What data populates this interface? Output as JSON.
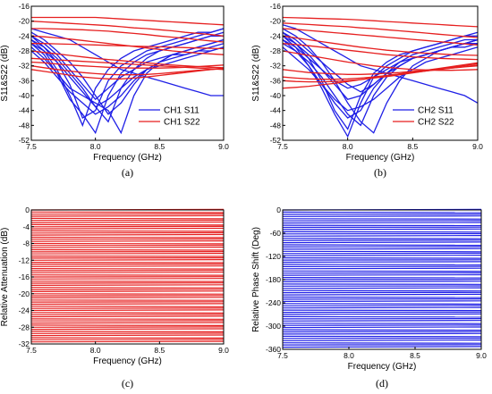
{
  "colors": {
    "blue": "#1f1fe6",
    "red": "#e61f1f",
    "axis": "#000000"
  },
  "chart_data": [
    {
      "type": "line",
      "caption": "(a)",
      "xlabel": "Frequency (GHz)",
      "ylabel": "S11&S22 (dB)",
      "xlim": [
        7.5,
        9.0
      ],
      "ylim": [
        -52,
        -16
      ],
      "xticks": [
        "7.5",
        "8.0",
        "8.5",
        "9.0"
      ],
      "yticks": [
        "-16",
        "-20",
        "-24",
        "-28",
        "-32",
        "-36",
        "-40",
        "-44",
        "-48",
        "-52"
      ],
      "legend_position": "bottom-right",
      "x": [
        7.5,
        7.6,
        7.7,
        7.8,
        7.9,
        8.0,
        8.1,
        8.2,
        8.3,
        8.4,
        8.5,
        8.6,
        8.7,
        8.8,
        8.9,
        9.0
      ],
      "series": [
        {
          "name": "CH1 S11",
          "color": "blue",
          "curves": [
            [
              -24,
              -27,
              -31,
              -37,
              -46,
              -44,
              -36,
              -32,
              -30,
              -28,
              -27,
              -26,
              -25,
              -24,
              -23,
              -22
            ],
            [
              -25,
              -28,
              -33,
              -40,
              -48,
              -38,
              -33,
              -30,
              -28,
              -27,
              -26,
              -25,
              -24,
              -23,
              -23,
              -22
            ],
            [
              -26,
              -29,
              -34,
              -41,
              -45,
              -50,
              -40,
              -34,
              -31,
              -29,
              -28,
              -27,
              -26,
              -25,
              -24,
              -23
            ],
            [
              -25,
              -27,
              -30,
              -34,
              -38,
              -43,
              -47,
              -38,
              -33,
              -30,
              -28,
              -27,
              -26,
              -25,
              -24,
              -24
            ],
            [
              -27,
              -30,
              -34,
              -38,
              -40,
              -42,
              -44,
              -50,
              -40,
              -34,
              -31,
              -29,
              -28,
              -27,
              -26,
              -25
            ],
            [
              -28,
              -31,
              -35,
              -39,
              -42,
              -45,
              -43,
              -40,
              -36,
              -33,
              -31,
              -30,
              -29,
              -28,
              -27,
              -26
            ],
            [
              -23,
              -25,
              -28,
              -31,
              -35,
              -40,
              -45,
              -42,
              -37,
              -33,
              -31,
              -29,
              -28,
              -27,
              -26,
              -25
            ],
            [
              -26,
              -28,
              -31,
              -35,
              -39,
              -43,
              -41,
              -38,
              -35,
              -33,
              -32,
              -31,
              -30,
              -29,
              -28,
              -27
            ],
            [
              -22,
              -23,
              -24,
              -25,
              -27,
              -29,
              -31,
              -33,
              -34,
              -35,
              -36,
              -37,
              -38,
              -39,
              -40,
              -40
            ],
            [
              -24,
              -26,
              -29,
              -33,
              -37,
              -41,
              -38,
              -35,
              -33,
              -31,
              -30,
              -29,
              -29,
              -28,
              -28,
              -27
            ]
          ]
        },
        {
          "name": "CH1 S22",
          "color": "red",
          "curves": [
            [
              -19,
              -19,
              -19,
              -19,
              -19,
              -19,
              -19.2,
              -19.4,
              -19.6,
              -19.8,
              -20,
              -20.2,
              -20.4,
              -20.6,
              -20.8,
              -21
            ],
            [
              -20,
              -20.2,
              -20.4,
              -20.6,
              -20.8,
              -21,
              -21.2,
              -21.5,
              -21.8,
              -22,
              -22.3,
              -22.6,
              -23,
              -23.3,
              -23.6,
              -24
            ],
            [
              -22,
              -22,
              -22.1,
              -22.2,
              -22.3,
              -22.5,
              -22.7,
              -23,
              -23.3,
              -23.6,
              -24,
              -24.3,
              -24.6,
              -25,
              -25.3,
              -25.6
            ],
            [
              -24,
              -24.2,
              -24.5,
              -24.8,
              -25.2,
              -25.6,
              -26,
              -26.4,
              -26.8,
              -27.2,
              -27.6,
              -28,
              -28.3,
              -28.6,
              -28.8,
              -29
            ],
            [
              -26,
              -26,
              -26.1,
              -26.2,
              -26.3,
              -26.4,
              -26.5,
              -26.6,
              -26.7,
              -26.8,
              -26.9,
              -27,
              -27.1,
              -27.2,
              -27.3,
              -27.4
            ],
            [
              -28,
              -28.4,
              -28.8,
              -29.2,
              -29.6,
              -30,
              -30.3,
              -30.6,
              -30.9,
              -31.2,
              -31.5,
              -31.8,
              -32,
              -32.2,
              -32.4,
              -32.5
            ],
            [
              -30,
              -30.2,
              -30.4,
              -30.6,
              -30.8,
              -31,
              -31.2,
              -31.4,
              -31.6,
              -31.8,
              -32,
              -32.2,
              -32.4,
              -32.6,
              -32.8,
              -33
            ],
            [
              -31,
              -31.2,
              -31.5,
              -31.8,
              -32,
              -32.2,
              -32.4,
              -32.5,
              -32.6,
              -32.6,
              -32.6,
              -32.5,
              -32.4,
              -32.2,
              -32,
              -31.8
            ],
            [
              -32,
              -32.5,
              -33,
              -33.4,
              -33.8,
              -34.1,
              -34.3,
              -34.4,
              -34.4,
              -34.3,
              -34.1,
              -33.8,
              -33.5,
              -33.2,
              -33,
              -32.8
            ],
            [
              -33,
              -33.5,
              -34,
              -34.5,
              -35,
              -35.3,
              -35.5,
              -35.5,
              -35.3,
              -35,
              -34.6,
              -34.2,
              -33.8,
              -33.4,
              -33,
              -32.6
            ]
          ]
        }
      ]
    },
    {
      "type": "line",
      "caption": "(b)",
      "xlabel": "Frequency (GHz)",
      "ylabel": "S11&S22 (dB)",
      "xlim": [
        7.5,
        9.0
      ],
      "ylim": [
        -52,
        -16
      ],
      "xticks": [
        "7.5",
        "8.0",
        "8.5",
        "9.0"
      ],
      "yticks": [
        "-16",
        "-20",
        "-24",
        "-28",
        "-32",
        "-36",
        "-40",
        "-44",
        "-48",
        "-52"
      ],
      "legend_position": "bottom-right",
      "x": [
        7.5,
        7.6,
        7.7,
        7.8,
        7.9,
        8.0,
        8.1,
        8.2,
        8.3,
        8.4,
        8.5,
        8.6,
        8.7,
        8.8,
        8.9,
        9.0
      ],
      "series": [
        {
          "name": "CH2 S11",
          "color": "blue",
          "curves": [
            [
              -23,
              -26,
              -30,
              -36,
              -44,
              -49,
              -40,
              -34,
              -31,
              -29,
              -28,
              -27,
              -26,
              -25,
              -24,
              -23
            ],
            [
              -24,
              -27,
              -32,
              -38,
              -45,
              -51,
              -42,
              -35,
              -32,
              -30,
              -28,
              -27,
              -26,
              -25,
              -24,
              -24
            ],
            [
              -25,
              -28,
              -32,
              -37,
              -42,
              -46,
              -44,
              -38,
              -34,
              -31,
              -29,
              -28,
              -27,
              -26,
              -25,
              -25
            ],
            [
              -26,
              -28,
              -31,
              -35,
              -40,
              -45,
              -48,
              -40,
              -35,
              -32,
              -30,
              -29,
              -28,
              -27,
              -26,
              -25
            ],
            [
              -22,
              -24,
              -27,
              -31,
              -36,
              -42,
              -47,
              -50,
              -42,
              -36,
              -32,
              -30,
              -28,
              -27,
              -26,
              -25
            ],
            [
              -27,
              -30,
              -33,
              -37,
              -41,
              -44,
              -43,
              -41,
              -38,
              -35,
              -33,
              -31,
              -30,
              -29,
              -28,
              -27
            ],
            [
              -24,
              -26,
              -29,
              -33,
              -37,
              -41,
              -40,
              -37,
              -34,
              -32,
              -30,
              -29,
              -28,
              -27,
              -26,
              -26
            ],
            [
              -25,
              -27,
              -30,
              -33,
              -36,
              -38,
              -37,
              -35,
              -33,
              -31,
              -30,
              -29,
              -28,
              -27,
              -27,
              -26
            ],
            [
              -21,
              -22,
              -24,
              -26,
              -28,
              -30,
              -32,
              -33,
              -34,
              -35,
              -36,
              -37,
              -38,
              -39,
              -40,
              -42
            ],
            [
              -23,
              -25,
              -28,
              -31,
              -34,
              -37,
              -39,
              -37,
              -34,
              -32,
              -30,
              -29,
              -28,
              -27,
              -26,
              -25
            ]
          ]
        },
        {
          "name": "CH2 S22",
          "color": "red",
          "curves": [
            [
              -19,
              -19.1,
              -19.2,
              -19.3,
              -19.4,
              -19.5,
              -19.7,
              -19.9,
              -20.1,
              -20.3,
              -20.5,
              -20.7,
              -20.9,
              -21.1,
              -21.3,
              -21.5
            ],
            [
              -20.5,
              -20.7,
              -20.9,
              -21.1,
              -21.3,
              -21.5,
              -21.8,
              -22,
              -22.3,
              -22.6,
              -22.9,
              -23.2,
              -23.5,
              -23.8,
              -24.1,
              -24.4
            ],
            [
              -22,
              -22.2,
              -22.5,
              -22.8,
              -23.1,
              -23.4,
              -23.7,
              -24,
              -24.3,
              -24.6,
              -24.9,
              -25.2,
              -25.5,
              -25.8,
              -26.1,
              -26.4
            ],
            [
              -24,
              -24.5,
              -25,
              -25.5,
              -26,
              -26.5,
              -27,
              -27.4,
              -27.8,
              -28.1,
              -28.4,
              -28.6,
              -28.8,
              -29,
              -29.1,
              -29.2
            ],
            [
              -26,
              -26.3,
              -26.6,
              -27,
              -27.4,
              -27.8,
              -28.2,
              -28.6,
              -29,
              -29.3,
              -29.6,
              -29.8,
              -30,
              -30.1,
              -30.2,
              -30.3
            ],
            [
              -28,
              -28.6,
              -29.2,
              -29.8,
              -30.4,
              -31,
              -31.5,
              -32,
              -32.4,
              -32.7,
              -33,
              -33.1,
              -33.2,
              -33.2,
              -33.1,
              -33
            ],
            [
              -33,
              -33.4,
              -33.8,
              -34,
              -34.2,
              -34.3,
              -34.3,
              -34.2,
              -34,
              -33.8,
              -33.5,
              -33.2,
              -32.9,
              -32.6,
              -32.3,
              -32
            ],
            [
              -35,
              -35.3,
              -35.5,
              -35.6,
              -35.6,
              -35.5,
              -35.3,
              -35,
              -34.6,
              -34.2,
              -33.8,
              -33.4,
              -33,
              -32.6,
              -32.2,
              -31.8
            ],
            [
              -36,
              -36.2,
              -36.3,
              -36.3,
              -36.2,
              -36,
              -35.7,
              -35.3,
              -34.9,
              -34.4,
              -33.9,
              -33.4,
              -32.9,
              -32.4,
              -31.9,
              -31.4
            ],
            [
              -38,
              -37.8,
              -37.5,
              -37.1,
              -36.7,
              -36.2,
              -35.7,
              -35.2,
              -34.7,
              -34.2,
              -33.7,
              -33.2,
              -32.7,
              -32.2,
              -31.7,
              -31.2
            ]
          ]
        }
      ]
    },
    {
      "type": "line",
      "caption": "(c)",
      "xlabel": "Frequency (GHz)",
      "ylabel": "Relative Attenuation (dB)",
      "xlim": [
        7.5,
        9.0
      ],
      "ylim": [
        -32,
        0
      ],
      "xticks": [
        "7.5",
        "8.0",
        "8.5",
        "9.0"
      ],
      "yticks": [
        "0",
        "-4",
        "-8",
        "-12",
        "-16",
        "-20",
        "-24",
        "-28",
        "-32"
      ],
      "color": "red",
      "state_levels_db": [
        0,
        -0.5,
        -1,
        -1.5,
        -2,
        -2.5,
        -3,
        -3.5,
        -4,
        -4.5,
        -5,
        -5.5,
        -6,
        -6.5,
        -7,
        -7.5,
        -8,
        -8.5,
        -9,
        -9.5,
        -10,
        -10.5,
        -11,
        -11.5,
        -12,
        -12.5,
        -13,
        -13.5,
        -14,
        -14.5,
        -15,
        -15.5,
        -16,
        -16.5,
        -17,
        -17.5,
        -18,
        -18.5,
        -19,
        -19.5,
        -20,
        -20.5,
        -21,
        -21.5,
        -22,
        -22.5,
        -23,
        -23.5,
        -24,
        -24.5,
        -25,
        -25.5,
        -26,
        -26.5,
        -27,
        -27.5,
        -28,
        -28.5,
        -29,
        -29.5,
        -30,
        -30.5,
        -31,
        -31.5
      ]
    },
    {
      "type": "line",
      "caption": "(d)",
      "xlabel": "Frequency (GHz)",
      "ylabel": "Relative Phase Shift (Deg)",
      "xlim": [
        7.5,
        9.0
      ],
      "ylim": [
        -360,
        0
      ],
      "xticks": [
        "7.5",
        "8.0",
        "8.5",
        "9.0"
      ],
      "yticks": [
        "0",
        "-60",
        "-120",
        "-180",
        "-240",
        "-300",
        "-360"
      ],
      "color": "blue",
      "state_levels_deg": [
        0,
        -5.625,
        -11.25,
        -16.875,
        -22.5,
        -28.125,
        -33.75,
        -39.375,
        -45,
        -50.625,
        -56.25,
        -61.875,
        -67.5,
        -73.125,
        -78.75,
        -84.375,
        -90,
        -95.625,
        -101.25,
        -106.875,
        -112.5,
        -118.125,
        -123.75,
        -129.375,
        -135,
        -140.625,
        -146.25,
        -151.875,
        -157.5,
        -163.125,
        -168.75,
        -174.375,
        -180,
        -185.625,
        -191.25,
        -196.875,
        -202.5,
        -208.125,
        -213.75,
        -219.375,
        -225,
        -230.625,
        -236.25,
        -241.875,
        -247.5,
        -253.125,
        -258.75,
        -264.375,
        -270,
        -275.625,
        -281.25,
        -286.875,
        -292.5,
        -298.125,
        -303.75,
        -309.375,
        -315,
        -320.625,
        -326.25,
        -331.875,
        -337.5,
        -343.125,
        -348.75,
        -354.375
      ]
    }
  ]
}
